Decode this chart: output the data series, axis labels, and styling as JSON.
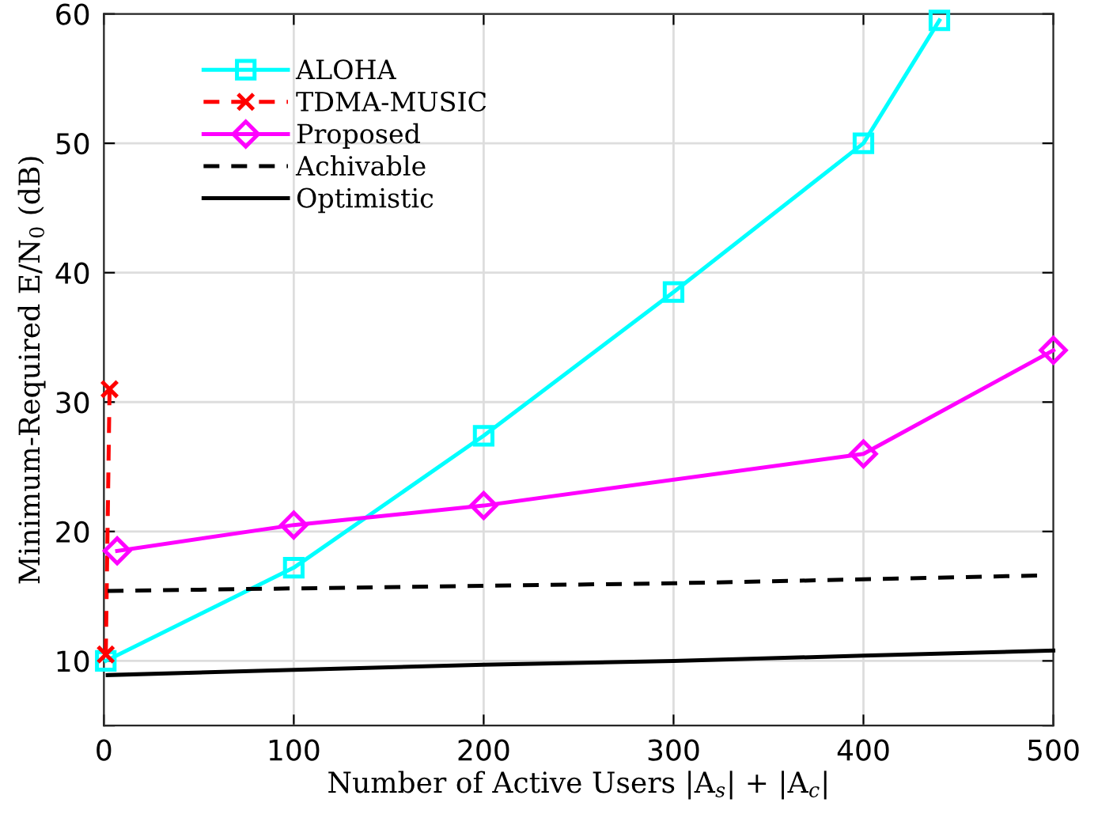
{
  "chart_data": {
    "type": "line",
    "xlabel": "Number of Active Users |A$_{s}$| + |A$_{c}$|",
    "ylabel": "Minimum-Required E/N$_{0}$ (dB)",
    "xlim": [
      0,
      500
    ],
    "ylim": [
      5,
      60
    ],
    "xticks": [
      0,
      100,
      200,
      300,
      400,
      500
    ],
    "yticks": [
      {
        "value": 5,
        "label": null
      },
      10,
      20,
      30,
      40,
      50,
      60
    ],
    "grid": true,
    "legend": "top left",
    "series": [
      {
        "name": "ALOHA",
        "color": "#00ffff",
        "marker": "square",
        "line_style": "solid",
        "x": [
          1,
          100,
          200,
          300,
          400,
          440
        ],
        "values": [
          10,
          17.2,
          27.4,
          38.5,
          50,
          59.5
        ]
      },
      {
        "name": "TDMA-MUSIC",
        "color": "#ff0000",
        "marker": "cross",
        "line_style": "dashed",
        "x": [
          1,
          3
        ],
        "values": [
          10.5,
          31
        ]
      },
      {
        "name": "Proposed",
        "color": "#ff00ff",
        "marker": "diamond",
        "line_style": "solid",
        "x": [
          7,
          100,
          200,
          400,
          500
        ],
        "values": [
          18.5,
          20.5,
          22,
          26,
          34
        ]
      },
      {
        "name": "Achivable",
        "color": "#000000",
        "marker": "none",
        "line_style": "dashed",
        "x": [
          2,
          100,
          200,
          300,
          400,
          492
        ],
        "values": [
          15.4,
          15.6,
          15.8,
          16.0,
          16.3,
          16.6
        ]
      },
      {
        "name": "Optimistic",
        "color": "#000000",
        "marker": "none",
        "line_style": "solid",
        "x": [
          2,
          100,
          200,
          300,
          400,
          500
        ],
        "values": [
          8.9,
          9.3,
          9.7,
          10.0,
          10.4,
          10.8
        ]
      }
    ]
  }
}
